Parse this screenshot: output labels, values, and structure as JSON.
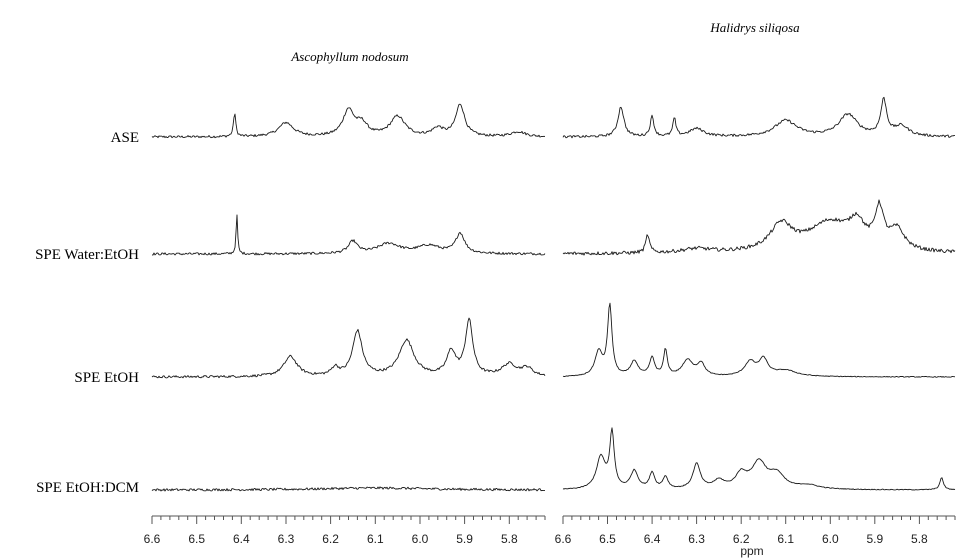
{
  "chart_data": {
    "type": "line",
    "panels": [
      {
        "title": "Ascophyllum nodosum",
        "x_tick_labels": [
          "6.6",
          "6.5",
          "6.4",
          "6.3",
          "6.2",
          "6.1",
          "6.0",
          "5.9",
          "5.8"
        ]
      },
      {
        "title": "Halidrys siliqosa",
        "x_tick_labels": [
          "6.6",
          "6.5",
          "6.4",
          "6.3",
          "6.2",
          "6.1",
          "6.0",
          "5.9",
          "5.8"
        ]
      }
    ],
    "rows": [
      "ASE",
      "SPE Water:EtOH",
      "SPE EtOH",
      "SPE EtOH:DCM"
    ],
    "xlabel": "ppm",
    "xlim": [
      6.6,
      5.72
    ],
    "x_reversed": true,
    "series": [
      {
        "panel": 0,
        "row": 0,
        "noise": 1.2,
        "peaks": [
          {
            "x": 6.415,
            "h": 24,
            "w": 0.003
          },
          {
            "x": 6.3,
            "h": 14,
            "w": 0.02
          },
          {
            "x": 6.16,
            "h": 26,
            "w": 0.015
          },
          {
            "x": 6.13,
            "h": 12,
            "w": 0.015
          },
          {
            "x": 6.05,
            "h": 20,
            "w": 0.02
          },
          {
            "x": 5.96,
            "h": 8,
            "w": 0.015
          },
          {
            "x": 5.91,
            "h": 32,
            "w": 0.012
          },
          {
            "x": 5.78,
            "h": 5,
            "w": 0.02
          }
        ]
      },
      {
        "panel": 0,
        "row": 1,
        "noise": 1.2,
        "peaks": [
          {
            "x": 6.41,
            "h": 40,
            "w": 0.002
          },
          {
            "x": 6.15,
            "h": 12,
            "w": 0.012
          },
          {
            "x": 6.07,
            "h": 10,
            "w": 0.03
          },
          {
            "x": 5.98,
            "h": 8,
            "w": 0.03
          },
          {
            "x": 5.91,
            "h": 20,
            "w": 0.012
          }
        ]
      },
      {
        "panel": 0,
        "row": 2,
        "noise": 1.2,
        "peaks": [
          {
            "x": 6.29,
            "h": 20,
            "w": 0.018
          },
          {
            "x": 6.19,
            "h": 8,
            "w": 0.01
          },
          {
            "x": 6.14,
            "h": 45,
            "w": 0.013
          },
          {
            "x": 6.03,
            "h": 36,
            "w": 0.02
          },
          {
            "x": 5.93,
            "h": 24,
            "w": 0.012
          },
          {
            "x": 5.89,
            "h": 55,
            "w": 0.01
          },
          {
            "x": 5.8,
            "h": 12,
            "w": 0.02
          },
          {
            "x": 5.76,
            "h": 8,
            "w": 0.015
          }
        ]
      },
      {
        "panel": 0,
        "row": 3,
        "noise": 1.2,
        "peaks": [
          {
            "x": 6.1,
            "h": 2,
            "w": 0.15
          }
        ]
      },
      {
        "panel": 1,
        "row": 0,
        "noise": 1.2,
        "peaks": [
          {
            "x": 6.47,
            "h": 30,
            "w": 0.008
          },
          {
            "x": 6.4,
            "h": 20,
            "w": 0.005
          },
          {
            "x": 6.35,
            "h": 18,
            "w": 0.004
          },
          {
            "x": 6.3,
            "h": 8,
            "w": 0.02
          },
          {
            "x": 6.1,
            "h": 16,
            "w": 0.03
          },
          {
            "x": 5.96,
            "h": 22,
            "w": 0.025
          },
          {
            "x": 5.88,
            "h": 35,
            "w": 0.008
          },
          {
            "x": 5.84,
            "h": 10,
            "w": 0.02
          }
        ]
      },
      {
        "panel": 1,
        "row": 1,
        "noise": 1.8,
        "peaks": [
          {
            "x": 6.41,
            "h": 18,
            "w": 0.005
          },
          {
            "x": 6.3,
            "h": 4,
            "w": 0.04
          },
          {
            "x": 6.11,
            "h": 26,
            "w": 0.03
          },
          {
            "x": 6.0,
            "h": 30,
            "w": 0.06
          },
          {
            "x": 5.94,
            "h": 22,
            "w": 0.02
          },
          {
            "x": 5.89,
            "h": 38,
            "w": 0.012
          },
          {
            "x": 5.85,
            "h": 20,
            "w": 0.02
          }
        ]
      },
      {
        "panel": 1,
        "row": 2,
        "noise": 0.4,
        "peaks": [
          {
            "x": 6.52,
            "h": 24,
            "w": 0.01
          },
          {
            "x": 6.495,
            "h": 70,
            "w": 0.006
          },
          {
            "x": 6.44,
            "h": 15,
            "w": 0.01
          },
          {
            "x": 6.4,
            "h": 18,
            "w": 0.007
          },
          {
            "x": 6.37,
            "h": 26,
            "w": 0.005
          },
          {
            "x": 6.32,
            "h": 16,
            "w": 0.015
          },
          {
            "x": 6.29,
            "h": 12,
            "w": 0.01
          },
          {
            "x": 6.18,
            "h": 14,
            "w": 0.015
          },
          {
            "x": 6.15,
            "h": 16,
            "w": 0.012
          },
          {
            "x": 6.1,
            "h": 6,
            "w": 0.03
          }
        ]
      },
      {
        "panel": 1,
        "row": 3,
        "noise": 0.4,
        "peaks": [
          {
            "x": 6.515,
            "h": 32,
            "w": 0.012
          },
          {
            "x": 6.49,
            "h": 55,
            "w": 0.006
          },
          {
            "x": 6.44,
            "h": 18,
            "w": 0.01
          },
          {
            "x": 6.4,
            "h": 16,
            "w": 0.007
          },
          {
            "x": 6.37,
            "h": 12,
            "w": 0.007
          },
          {
            "x": 6.3,
            "h": 25,
            "w": 0.01
          },
          {
            "x": 6.25,
            "h": 8,
            "w": 0.015
          },
          {
            "x": 6.2,
            "h": 14,
            "w": 0.015
          },
          {
            "x": 6.16,
            "h": 26,
            "w": 0.02
          },
          {
            "x": 6.12,
            "h": 14,
            "w": 0.02
          },
          {
            "x": 6.05,
            "h": 4,
            "w": 0.03
          },
          {
            "x": 5.75,
            "h": 12,
            "w": 0.005
          }
        ]
      }
    ]
  }
}
